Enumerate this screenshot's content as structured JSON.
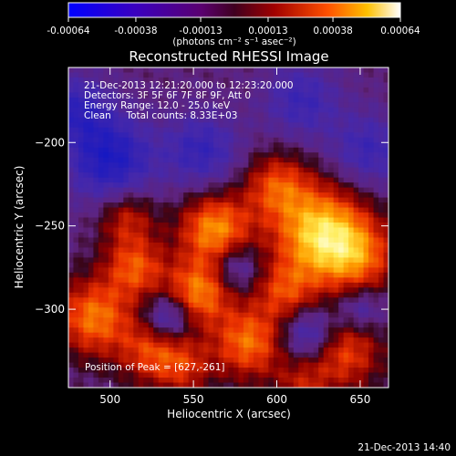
{
  "chart_data": {
    "type": "heatmap",
    "title": "Reconstructed RHESSI Image",
    "xlabel": "Heliocentric X (arcsec)",
    "ylabel": "Heliocentric Y (arcsec)",
    "xlim": [
      475,
      667
    ],
    "ylim": [
      -347,
      -155
    ],
    "x_ticks": [
      500,
      550,
      600,
      650
    ],
    "y_ticks": [
      -300,
      -250,
      -200
    ],
    "colorbar": {
      "min": -0.00064,
      "max": 0.00064,
      "ticks": [
        "-0.00064",
        "-0.00038",
        "-0.00013",
        "0.00013",
        "0.00038",
        "0.00064"
      ],
      "units_label": "(photons cm⁻² s⁻¹ asec⁻²)"
    },
    "annotations": [
      "21-Dec-2013 12:21:20.000 to 12:23:20.000",
      "Detectors: 3F 5F 6F 7F 8F 9F, Att 0",
      "Energy Range: 12.0 - 25.0 keV",
      "Clean     Total counts: 8.33E+03"
    ],
    "peak_label": "Position of Peak = [627,-261]",
    "peak_position": [
      627,
      -261
    ],
    "grid": false
  },
  "footer": {
    "timestamp": "21-Dec-2013 14:40"
  }
}
